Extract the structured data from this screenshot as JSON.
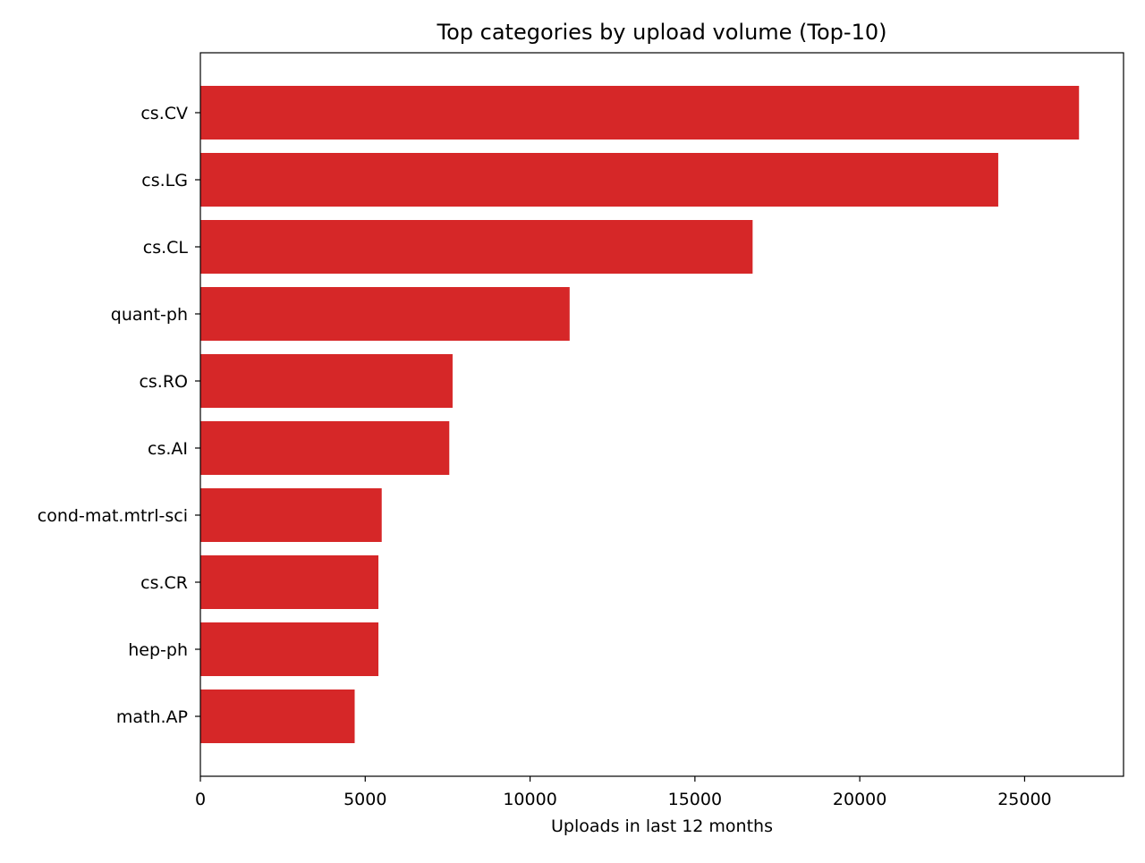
{
  "chart_data": {
    "type": "bar",
    "orientation": "horizontal",
    "title": "Top categories by upload volume (Top-10)",
    "xlabel": "Uploads in last 12 months",
    "ylabel": "",
    "categories": [
      "cs.CV",
      "cs.LG",
      "cs.CL",
      "quant-ph",
      "cs.RO",
      "cs.AI",
      "cond-mat.mtrl-sci",
      "cs.CR",
      "hep-ph",
      "math.AP"
    ],
    "values": [
      26650,
      24200,
      16750,
      11200,
      7650,
      7550,
      5500,
      5400,
      5400,
      4680
    ],
    "xlim": [
      0,
      28000
    ],
    "xticks": [
      0,
      5000,
      10000,
      15000,
      20000,
      25000
    ],
    "xtick_labels": [
      "0",
      "5000",
      "10000",
      "15000",
      "20000",
      "25000"
    ],
    "bar_color": "#d62728",
    "grid": false,
    "legend": "none"
  }
}
